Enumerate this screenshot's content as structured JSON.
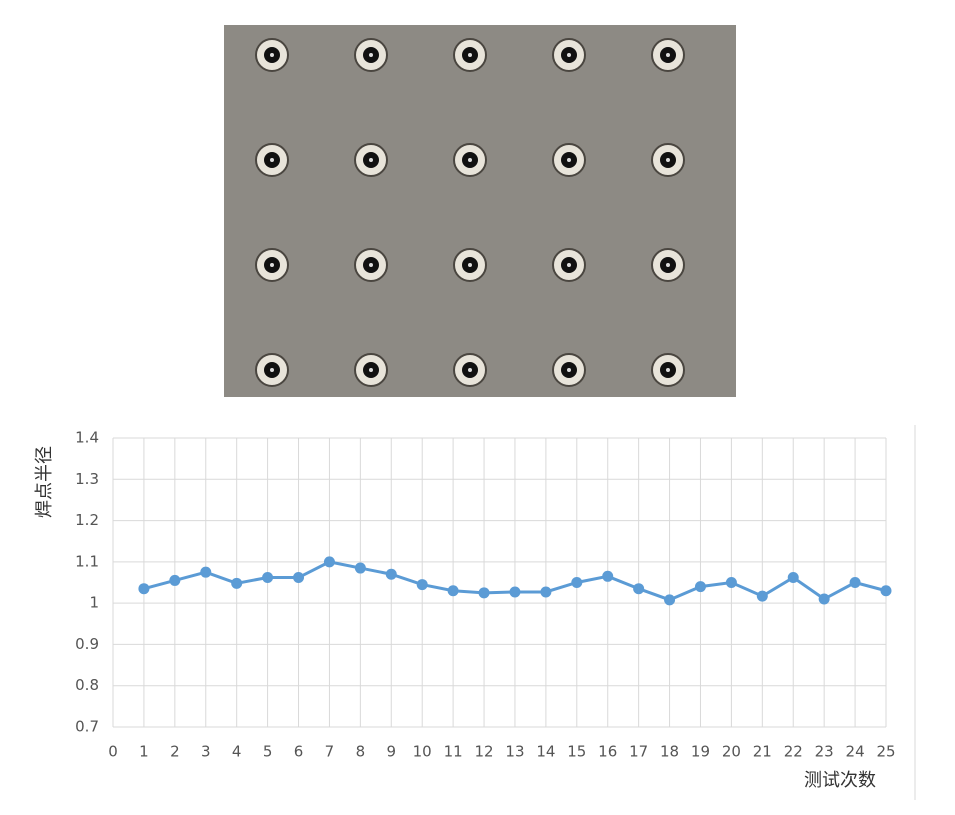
{
  "chart_data": {
    "type": "line",
    "ylabel": "焊点半径",
    "xlabel": "测试次数",
    "x": [
      1,
      2,
      3,
      4,
      5,
      6,
      7,
      8,
      9,
      10,
      11,
      12,
      13,
      14,
      15,
      16,
      17,
      18,
      19,
      20,
      21,
      22,
      23,
      24,
      25
    ],
    "series": [
      {
        "color": "#5b9bd5",
        "values": [
          1.035,
          1.055,
          1.075,
          1.048,
          1.062,
          1.062,
          1.1,
          1.085,
          1.07,
          1.045,
          1.03,
          1.025,
          1.027,
          1.027,
          1.05,
          1.065,
          1.035,
          1.008,
          1.04,
          1.05,
          1.017,
          1.062,
          1.01,
          1.05,
          1.03
        ]
      }
    ],
    "xlim": [
      0,
      25
    ],
    "xticks": [
      0,
      1,
      2,
      3,
      4,
      5,
      6,
      7,
      8,
      9,
      10,
      11,
      12,
      13,
      14,
      15,
      16,
      17,
      18,
      19,
      20,
      21,
      22,
      23,
      24,
      25
    ],
    "ylim": [
      0.7,
      1.4
    ],
    "yticks": [
      0.7,
      0.8,
      0.9,
      1,
      1.1,
      1.2,
      1.3,
      1.4
    ],
    "grid": true
  }
}
